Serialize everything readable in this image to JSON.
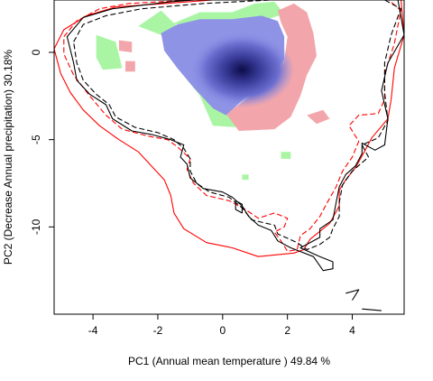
{
  "chart_data": {
    "type": "contour",
    "xlabel": "PC1 (Annual mean temperature ) 49.84 %",
    "ylabel": "PC2 (Decrease Annual precipitation) 30.18%",
    "xlim": [
      -5.2,
      5.6
    ],
    "ylim": [
      -15,
      3
    ],
    "x_ticks": [
      -4,
      -2,
      0,
      2,
      4
    ],
    "y_ticks": [
      0,
      -5,
      -10
    ],
    "x_tick_labels": [
      "-4",
      "-2",
      "0",
      "2",
      "4"
    ],
    "y_tick_labels": [
      "0",
      "-5",
      "-10"
    ],
    "density_peak": {
      "x": 0.6,
      "y": -1.0
    },
    "colors": {
      "overlap": "#8f93e6",
      "overlap_core": "#0c0c4a",
      "species1_only": "#a9f5a4",
      "species2_only": "#f2a6ab",
      "env1_line": "#000000",
      "env2_line": "#ff0000"
    },
    "regions": {
      "species1_only": [
        [
          [
            -3.9,
            1.0
          ],
          [
            -3.3,
            0.6
          ],
          [
            -3.1,
            -0.9
          ],
          [
            -3.7,
            -1.0
          ],
          [
            -3.9,
            -0.3
          ]
        ],
        [
          [
            -2.6,
            1.5
          ],
          [
            -1.9,
            2.4
          ],
          [
            -1.3,
            1.3
          ],
          [
            -1.6,
            -0.4
          ],
          [
            -0.7,
            -2.5
          ],
          [
            -0.3,
            -4.2
          ],
          [
            0.5,
            -4.3
          ],
          [
            0.1,
            -3.5
          ],
          [
            -0.8,
            -1.4
          ],
          [
            -1.6,
            0.1
          ],
          [
            -1.9,
            1.0
          ]
        ],
        [
          [
            -1.6,
            1.6
          ],
          [
            -0.7,
            2.3
          ],
          [
            0.3,
            2.3
          ],
          [
            1.0,
            2.8
          ],
          [
            1.6,
            2.9
          ],
          [
            1.9,
            2.2
          ],
          [
            1.2,
            1.8
          ],
          [
            0.2,
            1.6
          ],
          [
            -0.7,
            1.7
          ]
        ],
        [
          [
            1.8,
            -5.7
          ],
          [
            2.1,
            -5.7
          ],
          [
            2.1,
            -6.1
          ],
          [
            1.8,
            -6.1
          ]
        ],
        [
          [
            0.6,
            -7.0
          ],
          [
            0.8,
            -7.0
          ],
          [
            0.8,
            -7.3
          ],
          [
            0.6,
            -7.3
          ]
        ]
      ],
      "species2_only": [
        [
          [
            -3.2,
            0.7
          ],
          [
            -2.8,
            0.6
          ],
          [
            -2.8,
            0.0
          ],
          [
            -3.2,
            0.1
          ]
        ],
        [
          [
            -3.0,
            -0.5
          ],
          [
            -2.7,
            -0.5
          ],
          [
            -2.7,
            -1.1
          ],
          [
            -3.0,
            -1.1
          ]
        ],
        [
          [
            1.7,
            2.4
          ],
          [
            2.2,
            2.8
          ],
          [
            2.6,
            2.3
          ],
          [
            2.8,
            1.1
          ],
          [
            2.9,
            -0.2
          ],
          [
            2.6,
            -1.3
          ],
          [
            2.4,
            -2.5
          ],
          [
            2.1,
            -3.7
          ],
          [
            1.6,
            -4.4
          ],
          [
            0.5,
            -4.5
          ],
          [
            0.1,
            -3.5
          ],
          [
            0.8,
            -2.6
          ],
          [
            1.4,
            -1.8
          ],
          [
            1.9,
            -0.5
          ],
          [
            2.0,
            0.9
          ],
          [
            1.8,
            1.7
          ]
        ],
        [
          [
            2.6,
            -3.6
          ],
          [
            3.1,
            -3.3
          ],
          [
            3.3,
            -3.8
          ],
          [
            2.9,
            -4.1
          ]
        ]
      ],
      "overlap": [
        [
          [
            -1.9,
            1.1
          ],
          [
            -1.4,
            1.6
          ],
          [
            -0.7,
            1.9
          ],
          [
            0.3,
            1.9
          ],
          [
            1.2,
            2.1
          ],
          [
            1.7,
            1.8
          ],
          [
            1.9,
            0.9
          ],
          [
            1.9,
            -0.4
          ],
          [
            1.5,
            -1.6
          ],
          [
            0.8,
            -2.4
          ],
          [
            0.4,
            -3.1
          ],
          [
            0.1,
            -3.6
          ],
          [
            -0.3,
            -3.2
          ],
          [
            -0.9,
            -2.0
          ],
          [
            -1.4,
            -0.9
          ],
          [
            -1.8,
            0.1
          ]
        ]
      ]
    },
    "env1_solid": [
      [
        [
          -4.8,
          0.9
        ],
        [
          -4.3,
          2.0
        ],
        [
          -3.4,
          2.5
        ],
        [
          -1.6,
          2.9
        ],
        [
          0.6,
          3.2
        ],
        [
          2.6,
          3.3
        ],
        [
          4.5,
          3.4
        ],
        [
          5.4,
          3.1
        ],
        [
          5.6,
          1.0
        ],
        [
          5.1,
          -0.6
        ],
        [
          4.9,
          -2.2
        ],
        [
          5.1,
          -3.8
        ],
        [
          5.0,
          -5.3
        ],
        [
          4.7,
          -5.6
        ],
        [
          4.3,
          -5.2
        ],
        [
          4.3,
          -5.8
        ],
        [
          4.1,
          -6.5
        ],
        [
          3.8,
          -7.0
        ],
        [
          3.6,
          -7.7
        ],
        [
          3.5,
          -8.6
        ],
        [
          3.4,
          -9.6
        ],
        [
          3.0,
          -10.1
        ],
        [
          3.0,
          -10.6
        ],
        [
          2.4,
          -11.2
        ],
        [
          3.0,
          -11.7
        ],
        [
          3.4,
          -12.0
        ],
        [
          3.4,
          -12.4
        ],
        [
          3.1,
          -12.5
        ],
        [
          2.8,
          -11.7
        ],
        [
          2.1,
          -11.2
        ],
        [
          1.7,
          -10.8
        ],
        [
          1.5,
          -10.2
        ],
        [
          1.1,
          -9.9
        ],
        [
          0.8,
          -9.4
        ],
        [
          0.6,
          -8.8
        ],
        [
          0.3,
          -8.3
        ],
        [
          0.0,
          -8.0
        ],
        [
          -0.6,
          -7.8
        ],
        [
          -1.0,
          -7.2
        ],
        [
          -1.1,
          -6.4
        ],
        [
          -1.3,
          -6.0
        ],
        [
          -1.2,
          -5.3
        ],
        [
          -1.6,
          -5.0
        ],
        [
          -2.2,
          -4.7
        ],
        [
          -2.8,
          -4.5
        ],
        [
          -3.4,
          -3.8
        ],
        [
          -3.6,
          -3.0
        ],
        [
          -4.1,
          -2.4
        ],
        [
          -4.5,
          -1.6
        ],
        [
          -4.6,
          -0.6
        ]
      ],
      [
        [
          0.4,
          -8.5
        ],
        [
          0.6,
          -8.7
        ],
        [
          0.6,
          -9.2
        ],
        [
          0.4,
          -9.0
        ]
      ],
      [
        [
          3.8,
          -13.8
        ],
        [
          4.2,
          -13.6
        ],
        [
          4.0,
          -14.2
        ]
      ],
      [
        [
          4.3,
          -14.7
        ],
        [
          4.9,
          -14.8
        ]
      ]
    ],
    "env1_dashed": [
      [
        [
          -4.6,
          0.6
        ],
        [
          -4.3,
          1.6
        ],
        [
          -3.6,
          2.1
        ],
        [
          -2.5,
          2.5
        ],
        [
          -0.6,
          2.8
        ],
        [
          1.5,
          3.0
        ],
        [
          3.4,
          3.1
        ],
        [
          4.9,
          3.1
        ],
        [
          5.5,
          2.5
        ],
        [
          5.2,
          1.0
        ],
        [
          5.0,
          -0.6
        ],
        [
          5.0,
          -2.3
        ],
        [
          5.1,
          -3.9
        ],
        [
          4.8,
          -4.9
        ],
        [
          4.3,
          -5.3
        ],
        [
          4.5,
          -6.0
        ],
        [
          4.0,
          -6.8
        ],
        [
          3.7,
          -7.6
        ],
        [
          3.6,
          -8.6
        ],
        [
          3.6,
          -9.4
        ],
        [
          3.4,
          -10.1
        ],
        [
          3.3,
          -10.6
        ],
        [
          3.0,
          -11.0
        ],
        [
          2.6,
          -11.3
        ],
        [
          2.3,
          -10.9
        ],
        [
          1.7,
          -10.4
        ],
        [
          1.6,
          -9.9
        ],
        [
          0.9,
          -9.6
        ],
        [
          0.6,
          -8.9
        ],
        [
          0.2,
          -8.3
        ],
        [
          -0.4,
          -8.0
        ],
        [
          -0.8,
          -7.5
        ],
        [
          -1.0,
          -6.8
        ],
        [
          -1.0,
          -6.1
        ],
        [
          -1.2,
          -5.5
        ],
        [
          -1.5,
          -5.0
        ],
        [
          -2.0,
          -4.6
        ],
        [
          -2.7,
          -4.3
        ],
        [
          -3.3,
          -3.7
        ],
        [
          -3.5,
          -3.0
        ],
        [
          -3.9,
          -2.4
        ],
        [
          -4.3,
          -1.6
        ],
        [
          -4.5,
          -0.6
        ]
      ]
    ],
    "env2_solid": [
      [
        [
          -5.2,
          0.2
        ],
        [
          -4.9,
          1.3
        ],
        [
          -4.2,
          2.1
        ],
        [
          -3.3,
          2.6
        ],
        [
          -1.8,
          2.8
        ],
        [
          0.4,
          3.1
        ],
        [
          2.6,
          3.3
        ],
        [
          4.6,
          3.3
        ],
        [
          5.5,
          3.1
        ],
        [
          5.6,
          1.0
        ],
        [
          5.3,
          -0.9
        ],
        [
          5.2,
          -2.7
        ],
        [
          5.1,
          -3.8
        ],
        [
          4.6,
          -4.9
        ],
        [
          4.4,
          -5.6
        ],
        [
          4.1,
          -6.6
        ],
        [
          3.8,
          -7.3
        ],
        [
          3.6,
          -7.9
        ],
        [
          3.6,
          -8.8
        ],
        [
          3.3,
          -9.8
        ],
        [
          2.7,
          -10.7
        ],
        [
          2.5,
          -11.3
        ],
        [
          2.2,
          -11.5
        ],
        [
          1.1,
          -11.7
        ],
        [
          0.3,
          -11.2
        ],
        [
          -0.5,
          -10.9
        ],
        [
          -1.2,
          -10.1
        ],
        [
          -1.5,
          -9.2
        ],
        [
          -1.6,
          -8.2
        ],
        [
          -1.8,
          -7.3
        ],
        [
          -2.2,
          -6.5
        ],
        [
          -2.6,
          -5.7
        ],
        [
          -3.2,
          -5.0
        ],
        [
          -3.8,
          -4.2
        ],
        [
          -4.3,
          -3.3
        ],
        [
          -4.7,
          -2.3
        ],
        [
          -5.0,
          -1.2
        ]
      ]
    ],
    "env2_dashed": [
      [
        [
          -4.9,
          0.9
        ],
        [
          -4.5,
          1.8
        ],
        [
          -3.8,
          2.5
        ],
        [
          -2.9,
          2.8
        ],
        [
          -1.0,
          3.0
        ],
        [
          1.2,
          3.2
        ],
        [
          3.4,
          3.3
        ],
        [
          5.0,
          3.2
        ],
        [
          5.5,
          2.4
        ],
        [
          5.3,
          0.5
        ],
        [
          5.0,
          -1.2
        ],
        [
          5.0,
          -2.7
        ],
        [
          4.8,
          -3.5
        ],
        [
          4.2,
          -3.6
        ],
        [
          3.9,
          -4.2
        ],
        [
          4.2,
          -5.1
        ],
        [
          4.0,
          -6.0
        ],
        [
          3.7,
          -6.8
        ],
        [
          3.5,
          -7.7
        ],
        [
          3.2,
          -8.7
        ],
        [
          3.0,
          -9.4
        ],
        [
          2.7,
          -10.1
        ],
        [
          2.4,
          -10.5
        ],
        [
          2.3,
          -11.3
        ],
        [
          2.0,
          -11.4
        ],
        [
          1.8,
          -10.8
        ],
        [
          1.6,
          -10.3
        ],
        [
          1.9,
          -10.0
        ],
        [
          2.0,
          -9.5
        ],
        [
          1.6,
          -9.2
        ],
        [
          1.1,
          -9.5
        ],
        [
          0.7,
          -9.0
        ],
        [
          0.2,
          -8.5
        ],
        [
          -0.5,
          -8.2
        ],
        [
          -0.9,
          -7.5
        ],
        [
          -1.1,
          -6.7
        ],
        [
          -1.0,
          -6.1
        ],
        [
          -1.4,
          -5.4
        ],
        [
          -1.7,
          -5.0
        ],
        [
          -2.3,
          -4.8
        ],
        [
          -3.1,
          -4.4
        ],
        [
          -3.6,
          -3.6
        ],
        [
          -4.1,
          -2.5
        ],
        [
          -4.6,
          -1.3
        ],
        [
          -4.9,
          -0.1
        ]
      ]
    ]
  }
}
